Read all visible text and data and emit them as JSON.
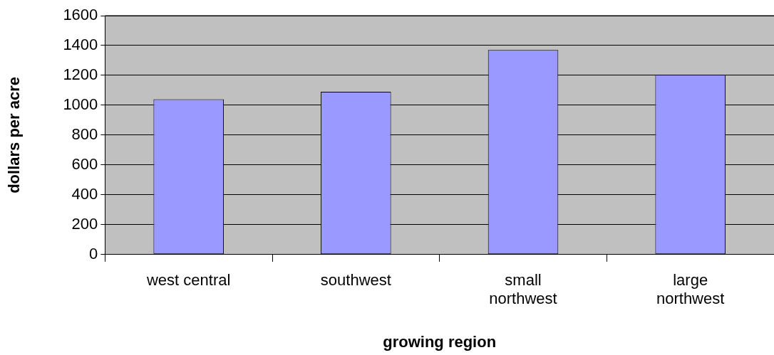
{
  "chart_data": {
    "type": "bar",
    "xlabel": "growing region",
    "ylabel": "dollars per acre",
    "categories": [
      "west central",
      "southwest",
      "small\nnorthwest",
      "large\nnorthwest"
    ],
    "values": [
      1040,
      1090,
      1370,
      1205
    ],
    "color": "#9999ff",
    "ylim": [
      0,
      1600
    ],
    "yticks": [
      0,
      200,
      400,
      600,
      800,
      1000,
      1200,
      1400,
      1600
    ],
    "grid": "y",
    "legend": false
  }
}
